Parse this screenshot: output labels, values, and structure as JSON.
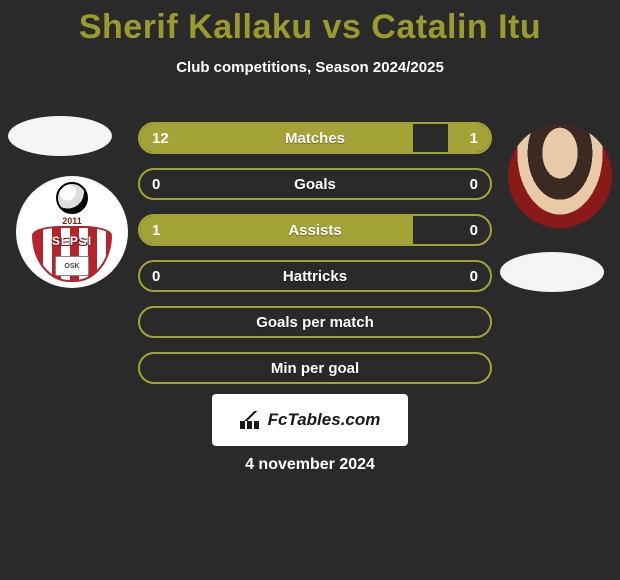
{
  "title": "Sherif Kallaku vs Catalin Itu",
  "subtitle": "Club competitions, Season 2024/2025",
  "date": "4 november 2024",
  "watermark": "FcTables.com",
  "colors": {
    "accent": "#a3a337",
    "title": "#9a9a2f",
    "background": "#2a2a2a",
    "text": "#ffffff",
    "watermark_bg": "#ffffff"
  },
  "left": {
    "club_badge": {
      "year": "2011",
      "name": "SEPSI",
      "sub": "OSK",
      "stripe_color": "#b4242a"
    }
  },
  "stats": [
    {
      "label": "Matches",
      "left_val": "12",
      "right_val": "1",
      "left_fill_pct": 78,
      "right_fill_pct": 12
    },
    {
      "label": "Goals",
      "left_val": "0",
      "right_val": "0",
      "left_fill_pct": 0,
      "right_fill_pct": 0
    },
    {
      "label": "Assists",
      "left_val": "1",
      "right_val": "0",
      "left_fill_pct": 78,
      "right_fill_pct": 0
    },
    {
      "label": "Hattricks",
      "left_val": "0",
      "right_val": "0",
      "left_fill_pct": 0,
      "right_fill_pct": 0
    },
    {
      "label": "Goals per match",
      "left_val": "",
      "right_val": "",
      "left_fill_pct": 0,
      "right_fill_pct": 0
    },
    {
      "label": "Min per goal",
      "left_val": "",
      "right_val": "",
      "left_fill_pct": 0,
      "right_fill_pct": 0
    }
  ]
}
